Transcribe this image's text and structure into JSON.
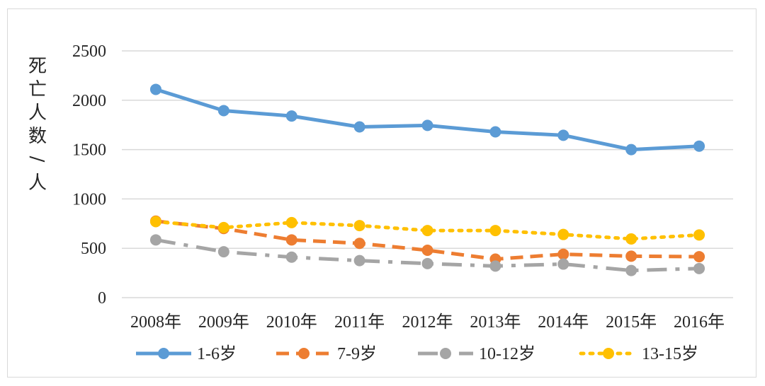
{
  "chart_data": {
    "type": "line",
    "title": "",
    "ylabel": "死亡人数/人",
    "xlabel": "",
    "categories": [
      "2008年",
      "2009年",
      "2010年",
      "2011年",
      "2012年",
      "2013年",
      "2014年",
      "2015年",
      "2016年"
    ],
    "ylim": [
      0,
      2500
    ],
    "yticks": [
      0,
      500,
      1000,
      1500,
      2000,
      2500
    ],
    "grid": true,
    "legend": "bottom",
    "series": [
      {
        "name": "1-6岁",
        "values": [
          2110,
          1895,
          1840,
          1730,
          1745,
          1680,
          1645,
          1500,
          1535
        ],
        "color": "#5B9BD5",
        "style": "solid"
      },
      {
        "name": "7-9岁",
        "values": [
          775,
          700,
          585,
          550,
          480,
          390,
          440,
          420,
          415
        ],
        "color": "#ED7D31",
        "style": "dash"
      },
      {
        "name": "10-12岁",
        "values": [
          585,
          465,
          410,
          375,
          345,
          320,
          340,
          275,
          295
        ],
        "color": "#A5A5A5",
        "style": "longdashdot"
      },
      {
        "name": "13-15岁",
        "values": [
          770,
          710,
          760,
          730,
          680,
          680,
          640,
          595,
          635
        ],
        "color": "#FFC000",
        "style": "dot"
      }
    ]
  }
}
